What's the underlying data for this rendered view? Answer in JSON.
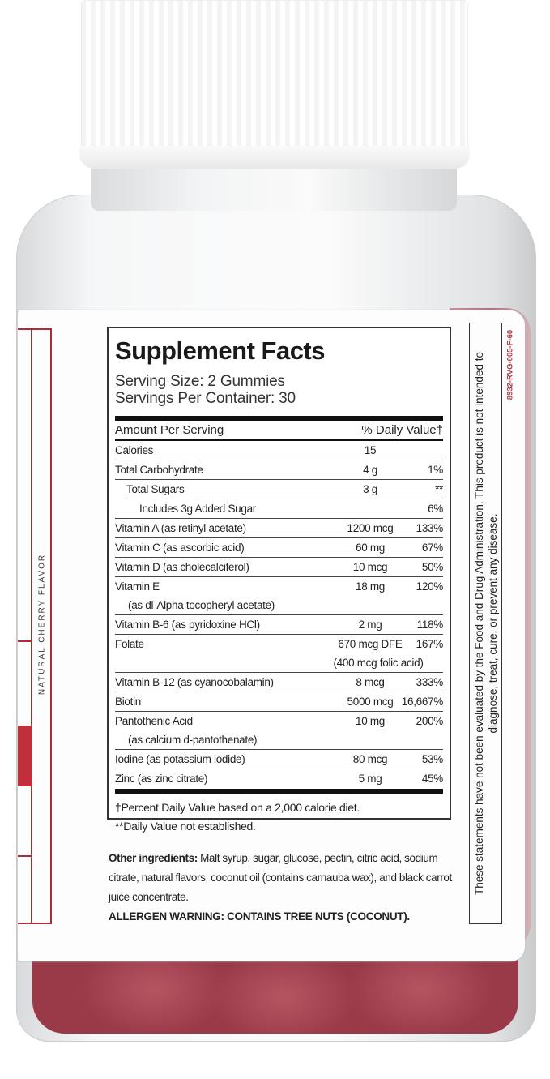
{
  "left_panel": {
    "flavor": "NATURAL CHERRY FLAVOR"
  },
  "supplement_facts": {
    "title": "Supplement Facts",
    "serving_size": "Serving Size: 2 Gummies",
    "servings_per_container": "Servings Per Container: 30",
    "amount_header": "Amount Per Serving",
    "dv_header": "% Daily Value†",
    "rows": [
      {
        "name": "Calories",
        "amount": "15",
        "dv": ""
      },
      {
        "name": "Total Carbohydrate",
        "amount": "4 g",
        "dv": "1%"
      },
      {
        "name": "Total Sugars",
        "amount": "3 g",
        "dv": "**",
        "indent": 1
      },
      {
        "name": "Includes 3g Added Sugar",
        "amount": "",
        "dv": "6%",
        "indent": 2
      },
      {
        "name": "Vitamin A (as retinyl acetate)",
        "amount": "1200 mcg",
        "dv": "133%"
      },
      {
        "name": "Vitamin C (as ascorbic acid)",
        "amount": "60 mg",
        "dv": "67%"
      },
      {
        "name": "Vitamin D (as cholecalciferol)",
        "amount": "10 mcg",
        "dv": "50%"
      },
      {
        "name": "Vitamin E",
        "sub": "(as dl-Alpha tocopheryl acetate)",
        "amount": "18 mg",
        "dv": "120%"
      },
      {
        "name": "Vitamin B-6 (as pyridoxine HCl)",
        "amount": "2 mg",
        "dv": "118%"
      },
      {
        "name": "Folate",
        "amount": "670 mcg DFE",
        "amount_sub": "(400 mcg folic acid)",
        "dv": "167%"
      },
      {
        "name": "Vitamin B-12 (as cyanocobalamin)",
        "amount": "8 mcg",
        "dv": "333%"
      },
      {
        "name": "Biotin",
        "amount": "5000 mcg",
        "dv": "16,667%"
      },
      {
        "name": "Pantothenic Acid",
        "sub": "(as calcium d-pantothenate)",
        "amount": "10 mg",
        "dv": "200%"
      },
      {
        "name": "Iodine (as potassium iodide)",
        "amount": "80 mcg",
        "dv": "53%"
      },
      {
        "name": "Zinc (as zinc citrate)",
        "amount": "5 mg",
        "dv": "45%"
      }
    ],
    "footnote_1": "†Percent Daily Value based on a 2,000 calorie diet.",
    "footnote_2": "**Daily Value not established."
  },
  "other_ingredients": {
    "label": "Other ingredients:",
    "text": " Malt syrup, sugar, glucose, pectin, citric acid, sodium citrate, natural flavors, coconut oil (contains carnauba wax), and black carrot juice concentrate."
  },
  "allergen_warning": "ALLERGEN WARNING: CONTAINS TREE NUTS (COCONUT).",
  "fda_statement": "These statements have not been evaluated by the Food and Drug Administration. This product is not intended to diagnose, treat, cure, or prevent any disease.",
  "product_code": "8932-RVG-005-F-60",
  "colors": {
    "label_red": "#b22a33",
    "gummy": "#9a3a48",
    "code_red": "#b23a44"
  }
}
